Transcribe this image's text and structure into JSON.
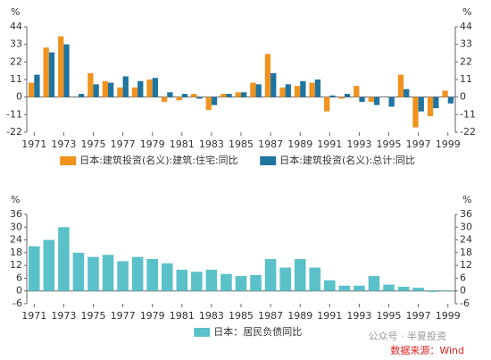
{
  "chart_data": [
    {
      "type": "bar",
      "ylabel": "%",
      "y2label": "%",
      "x": [
        1971,
        1972,
        1973,
        1974,
        1975,
        1976,
        1977,
        1978,
        1979,
        1980,
        1981,
        1982,
        1983,
        1984,
        1985,
        1986,
        1987,
        1988,
        1989,
        1990,
        1991,
        1992,
        1993,
        1994,
        1995,
        1996,
        1997,
        1998,
        1999
      ],
      "xlim": [
        1970.5,
        1999.5
      ],
      "xticks": [
        1971,
        1973,
        1975,
        1977,
        1979,
        1981,
        1983,
        1985,
        1987,
        1989,
        1991,
        1993,
        1995,
        1997,
        1999
      ],
      "ylim": [
        -22,
        44
      ],
      "yticks": [
        -22,
        -11,
        0,
        11,
        22,
        33,
        44
      ],
      "legend": "bottom",
      "series": [
        {
          "name": "日本:建筑投资(名义):建筑:住宅:同比",
          "color": "#f0921e",
          "values": [
            9,
            31,
            38,
            0,
            15,
            10,
            6,
            6,
            11,
            -3,
            -2,
            2,
            -8,
            2,
            3,
            9,
            27,
            6,
            7,
            9,
            -9,
            -1,
            7,
            -3,
            0,
            14,
            -19,
            -12,
            4
          ]
        },
        {
          "name": "日本:建筑投资(名义):总计:同比",
          "color": "#1f74a0",
          "values": [
            14,
            28,
            33,
            2,
            8,
            9,
            13,
            10,
            12,
            3,
            2,
            -1,
            -5,
            2,
            3,
            8,
            15,
            8,
            10,
            11,
            1,
            2,
            -3,
            -5,
            -6,
            5,
            -9,
            -7,
            -4
          ]
        }
      ]
    },
    {
      "type": "bar",
      "ylabel": "%",
      "y2label": "%",
      "x": [
        1971,
        1972,
        1973,
        1974,
        1975,
        1976,
        1977,
        1978,
        1979,
        1980,
        1981,
        1982,
        1983,
        1984,
        1985,
        1986,
        1987,
        1988,
        1989,
        1990,
        1991,
        1992,
        1993,
        1994,
        1995,
        1996,
        1997,
        1998,
        1999
      ],
      "xlim": [
        1970.5,
        1999.5
      ],
      "xticks": [
        1971,
        1973,
        1975,
        1977,
        1979,
        1981,
        1983,
        1985,
        1987,
        1989,
        1991,
        1993,
        1995,
        1997,
        1999
      ],
      "ylim": [
        -6,
        36
      ],
      "yticks": [
        -6,
        0,
        6,
        12,
        18,
        24,
        30,
        36
      ],
      "legend": "bottom",
      "series": [
        {
          "name": "日本：居民负债同比",
          "color": "#5bc1c9",
          "values": [
            21,
            24,
            30,
            18,
            16,
            17,
            14,
            16,
            15,
            13,
            10,
            9,
            10,
            8,
            7,
            7.5,
            15,
            11,
            15,
            11,
            5,
            2.5,
            2.5,
            7,
            3,
            2,
            1.5,
            -0.5,
            0.3
          ]
        }
      ]
    }
  ],
  "source": "数据来源：Wind",
  "watermark": "公众号 · 半夏投资"
}
